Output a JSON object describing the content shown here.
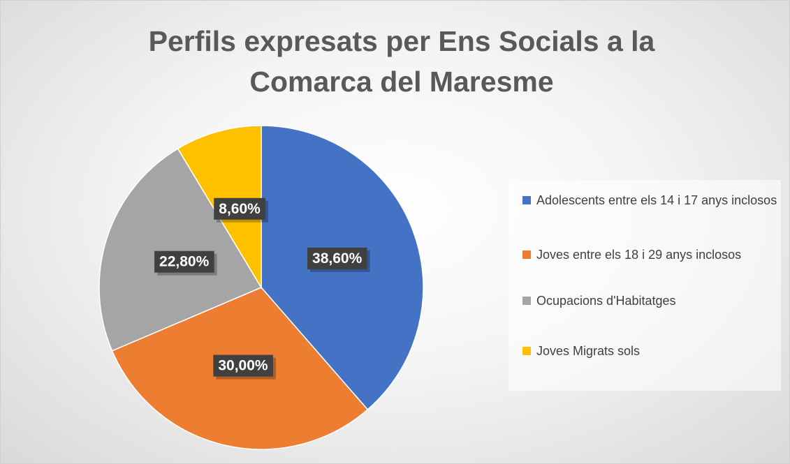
{
  "chart_data": {
    "type": "pie",
    "title": "Perfils expresats per Ens Socials a la Comarca del Maresme",
    "categories": [
      "Adolescents entre els 14 i 17 anys inclosos",
      "Joves entre els 18 i 29 anys inclosos",
      "Ocupacions d'Habitatges",
      "Joves Migrats sols"
    ],
    "values": [
      38.6,
      30.0,
      22.8,
      8.6
    ],
    "value_labels": [
      "38,60%",
      "30,00%",
      "22,80%",
      "8,60%"
    ],
    "colors": [
      "#4472c4",
      "#ed7d31",
      "#a5a5a5",
      "#ffc000"
    ],
    "legend": "right"
  }
}
